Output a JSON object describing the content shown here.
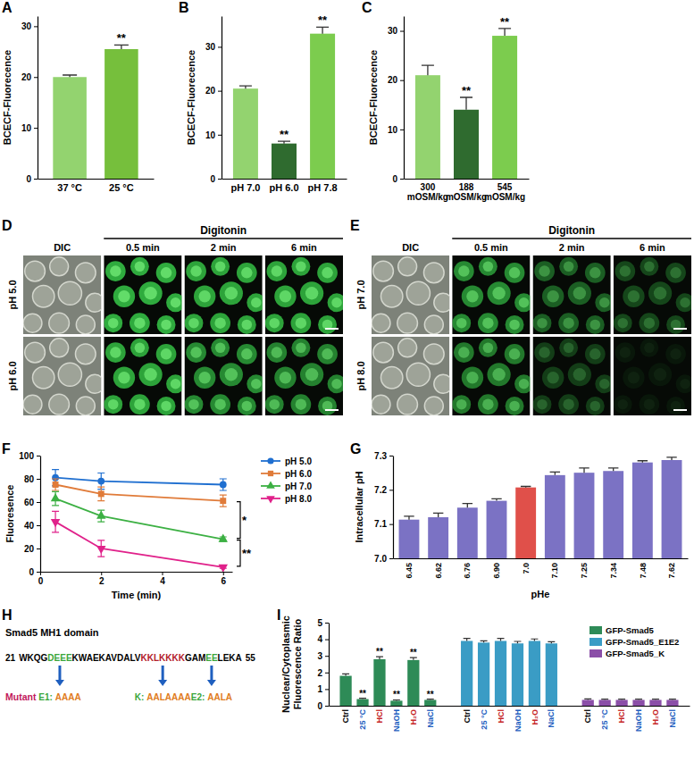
{
  "panel_labels": [
    "A",
    "B",
    "C",
    "D",
    "E",
    "F",
    "G",
    "H",
    "I"
  ],
  "chart_data": [
    {
      "type": "bar",
      "y_label": "BCECF-Fluorecence",
      "categories": [
        "37 °C",
        "25 °C"
      ],
      "values": [
        20,
        25.5
      ],
      "errors": [
        0.4,
        0.8
      ],
      "colors": [
        "#93d36f",
        "#76bf3c"
      ],
      "ylim": [
        0,
        32
      ],
      "yticks": [
        0,
        10,
        20,
        30
      ],
      "grid": false,
      "annotations": [
        {
          "category": "25 °C",
          "text": "**"
        }
      ]
    },
    {
      "type": "bar",
      "y_label": "BCECF-Fluorecence",
      "categories": [
        "pH 7.0",
        "pH 6.0",
        "pH 7.8"
      ],
      "values": [
        20.5,
        8,
        33
      ],
      "errors": [
        0.6,
        0.5,
        1.5
      ],
      "colors": [
        "#93d36f",
        "#2f6b2f",
        "#7ccc4e"
      ],
      "ylim": [
        0,
        37
      ],
      "yticks": [
        0,
        10,
        20,
        30
      ],
      "grid": false,
      "annotations": [
        {
          "category": "pH 6.0",
          "text": "**"
        },
        {
          "category": "pH 7.8",
          "text": "**"
        }
      ]
    },
    {
      "type": "bar",
      "y_label": "BCECF-Fluorecence",
      "categories": [
        "300 mOSM/kg",
        "188 mOSM/kg",
        "545 mOSM/kg"
      ],
      "values": [
        21,
        14,
        29
      ],
      "errors": [
        2,
        2.5,
        1.5
      ],
      "colors": [
        "#93d36f",
        "#2f6b2f",
        "#7ccc4e"
      ],
      "ylim": [
        0,
        33
      ],
      "yticks": [
        0,
        10,
        20,
        30
      ],
      "grid": false,
      "annotations": [
        {
          "category": "188 mOSM/kg",
          "text": "**"
        },
        {
          "category": "545 mOSM/kg",
          "text": "**"
        }
      ]
    },
    {
      "type": "line",
      "x_label": "Time (min)",
      "y_label": "Fluoresence",
      "x": [
        0.5,
        2,
        6
      ],
      "xlim": [
        0,
        6.3
      ],
      "xticks": [
        0,
        2,
        4,
        6
      ],
      "ylim": [
        0,
        100
      ],
      "yticks": [
        0,
        20,
        40,
        60,
        80,
        100
      ],
      "grid": false,
      "legend": "right",
      "series": [
        {
          "name": "pH 5.0",
          "color": "#1f6fd0",
          "marker": "circle",
          "values": [
            81,
            78,
            75
          ],
          "errors": [
            7,
            7,
            5
          ]
        },
        {
          "name": "pH 6.0",
          "color": "#e07b39",
          "marker": "square",
          "values": [
            75,
            67,
            61
          ],
          "errors": [
            5,
            6,
            5
          ]
        },
        {
          "name": "pH 7.0",
          "color": "#3cb043",
          "marker": "triangle",
          "values": [
            63,
            48,
            28
          ],
          "errors": [
            6,
            5,
            2
          ]
        },
        {
          "name": "pH 8.0",
          "color": "#e0218a",
          "marker": "triangle-down",
          "values": [
            43,
            20,
            4
          ],
          "errors": [
            9,
            7,
            1
          ]
        }
      ],
      "annotations": [
        {
          "between": [
            "pH 6.0",
            "pH 7.0"
          ],
          "text": "*"
        },
        {
          "between": [
            "pH 7.0",
            "pH 8.0"
          ],
          "text": "**"
        }
      ]
    },
    {
      "type": "bar",
      "x_label": "pHe",
      "y_label": "Intracellular pH",
      "categories": [
        "6.45",
        "6.62",
        "6.76",
        "6.90",
        "7.0",
        "7.10",
        "7.25",
        "7.34",
        "7.48",
        "7.62"
      ],
      "values": [
        7.113,
        7.12,
        7.148,
        7.168,
        7.207,
        7.243,
        7.25,
        7.255,
        7.28,
        7.287
      ],
      "errors": [
        0.01,
        0.012,
        0.012,
        0.006,
        0.003,
        0.009,
        0.014,
        0.009,
        0.005,
        0.008
      ],
      "colors": [
        "#7b72c4",
        "#7b72c4",
        "#7b72c4",
        "#7b72c4",
        "#e0504a",
        "#7b72c4",
        "#7b72c4",
        "#7b72c4",
        "#7b72c4",
        "#7b72c4"
      ],
      "ylim": [
        7.0,
        7.3
      ],
      "yticks": [
        {
          "value": 7.0,
          "label": "7.0"
        },
        7.1,
        7.2,
        7.3
      ],
      "grid": false
    },
    {
      "type": "bar",
      "y_label": "Nuclear/Cytoplasmic Fluorescence Ratio",
      "categories": [
        "Ctrl",
        "25 °C",
        "HCl",
        "NaOH",
        "H₂O",
        "NaCl"
      ],
      "ylim": [
        0,
        5
      ],
      "yticks": [
        0,
        1,
        2,
        3,
        4,
        5
      ],
      "grid": false,
      "legend": "upper right",
      "series": [
        {
          "name": "GFP-Smad5",
          "color": "#2e8b57",
          "values": [
            1.8,
            0.4,
            2.8,
            0.3,
            2.75,
            0.35
          ],
          "errors": [
            0.12,
            0.05,
            0.15,
            0.05,
            0.15,
            0.05
          ],
          "annotations": [
            {
              "category": "25 °C",
              "text": "**"
            },
            {
              "category": "HCl",
              "text": "**"
            },
            {
              "category": "NaOH",
              "text": "**"
            },
            {
              "category": "H₂O",
              "text": "**"
            },
            {
              "category": "NaCl",
              "text": "**"
            }
          ]
        },
        {
          "name": "GFP-Smad5_E1E2",
          "color": "#3a9cc5",
          "values": [
            3.9,
            3.8,
            3.9,
            3.75,
            3.9,
            3.75
          ],
          "errors": [
            0.15,
            0.1,
            0.15,
            0.12,
            0.12,
            0.1
          ]
        },
        {
          "name": "GFP-Smad5_K",
          "color": "#8b4fa8",
          "values": [
            0.35,
            0.35,
            0.35,
            0.35,
            0.35,
            0.35
          ],
          "errors": [
            0.06,
            0.05,
            0.05,
            0.05,
            0.05,
            0.05
          ]
        }
      ]
    }
  ],
  "figures": [
    {
      "title": "Digitonin",
      "rows": [
        "pH 5.0",
        "pH 6.0"
      ],
      "columns": [
        "DIC",
        "0.5 min",
        "2 min",
        "6 min"
      ]
    },
    {
      "title": "Digitonin",
      "rows": [
        "pH 7.0",
        "pH 8.0"
      ],
      "columns": [
        "DIC",
        "0.5 min",
        "2 min",
        "6 min"
      ]
    }
  ],
  "sequence_diagram": {
    "title": "Smad5 MH1 domain",
    "start": "21",
    "end": "55",
    "segments": [
      {
        "text": "WKQG"
      },
      {
        "text": "DEEE",
        "color": "#3aa63a"
      },
      {
        "text": "KWAEKAVDALV"
      },
      {
        "text": "KKLKKKK",
        "color": "#b3202a"
      },
      {
        "text": "GAM"
      },
      {
        "text": "EE",
        "color": "#3aa63a"
      },
      {
        "text": "LEKA"
      }
    ],
    "mutant_label": "Mutant",
    "mutants": [
      {
        "label": "E1:",
        "text": "AAAA",
        "segment": 1
      },
      {
        "label": "K:",
        "text": "AALAAAA",
        "segment": 3
      },
      {
        "label": "E2:",
        "text": "AALA",
        "segment": 5
      }
    ]
  }
}
